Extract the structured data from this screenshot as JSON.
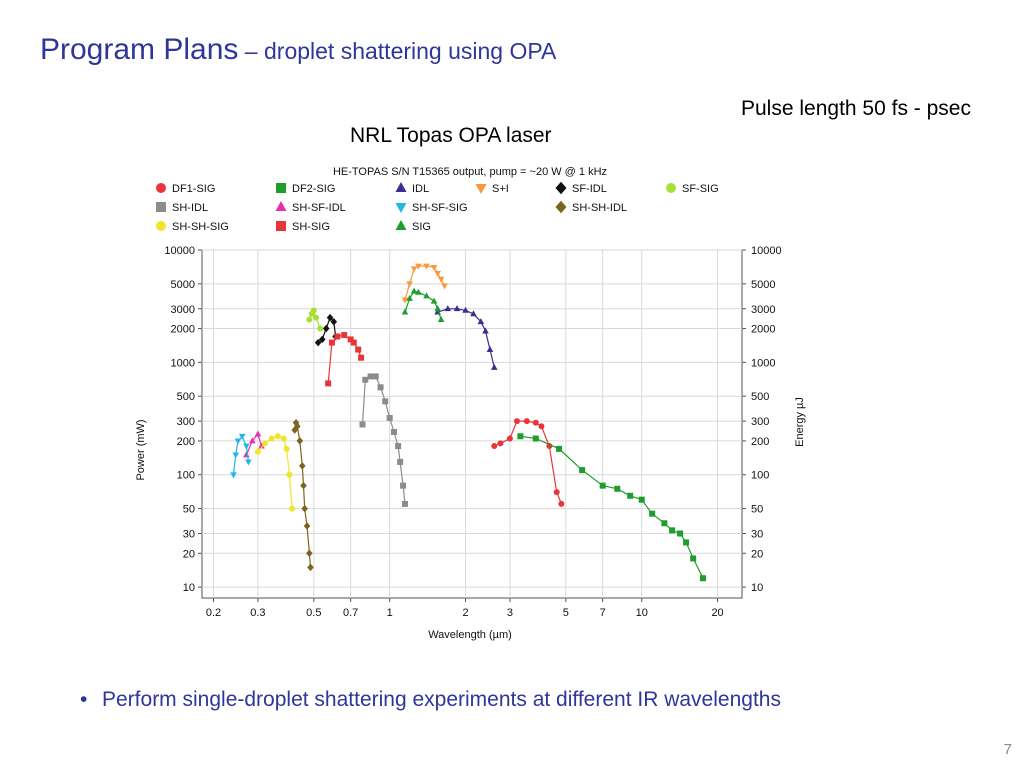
{
  "slide": {
    "title_main": "Program Plans",
    "title_sub": " – droplet shattering using OPA",
    "pulse_label": "Pulse length 50 fs - psec",
    "laser_label": "NRL Topas OPA laser",
    "bullet": "Perform single-droplet shattering experiments at different IR wavelengths",
    "page_number": "7"
  },
  "chart_data": {
    "type": "line",
    "title": "HE-TOPAS S/N T15365 output, pump = ~20 W @ 1 kHz",
    "xlabel": "Wavelength (µm)",
    "ylabel": "Power (mW)",
    "ylabel_right": "Energy µJ",
    "xscale": "log",
    "yscale": "log",
    "xlim": [
      0.18,
      25
    ],
    "ylim": [
      8,
      10000
    ],
    "grid": true,
    "legend_position": "top",
    "x_ticks": [
      0.2,
      0.3,
      0.5,
      0.7,
      1,
      2,
      3,
      5,
      7,
      10,
      20
    ],
    "x_tick_labels": [
      "0.2",
      "0.3",
      "0.5",
      "0.7",
      "1",
      "2",
      "3",
      "5",
      "7",
      "10",
      "20"
    ],
    "y_ticks": [
      10,
      20,
      30,
      50,
      100,
      200,
      300,
      500,
      1000,
      2000,
      3000,
      5000,
      10000
    ],
    "y_tick_labels": [
      "10",
      "20",
      "30",
      "50",
      "100",
      "200",
      "300",
      "500",
      "1000",
      "2000",
      "3000",
      "5000",
      "10000"
    ],
    "series": [
      {
        "name": "DF1-SIG",
        "color": "#e8353a",
        "marker": "circle",
        "x": [
          2.6,
          2.75,
          3.0,
          3.2,
          3.5,
          3.8,
          4.0,
          4.3,
          4.6,
          4.8
        ],
        "y": [
          180,
          190,
          210,
          300,
          300,
          290,
          270,
          180,
          70,
          55
        ]
      },
      {
        "name": "DF2-SIG",
        "color": "#1f9e2e",
        "marker": "square",
        "x": [
          3.3,
          3.8,
          4.7,
          5.8,
          7.0,
          8.0,
          9.0,
          10.0,
          11.0,
          12.3,
          13.2,
          14.2,
          15.0,
          16.0,
          17.5
        ],
        "y": [
          220,
          210,
          170,
          110,
          80,
          75,
          65,
          60,
          45,
          37,
          32,
          30,
          25,
          18,
          12
        ]
      },
      {
        "name": "IDL",
        "color": "#38308f",
        "marker": "triangle-up",
        "x": [
          1.55,
          1.7,
          1.85,
          2.0,
          2.15,
          2.3,
          2.4,
          2.5,
          2.6
        ],
        "y": [
          2800,
          3000,
          3000,
          2900,
          2700,
          2300,
          1900,
          1300,
          900
        ]
      },
      {
        "name": "S+I",
        "color": "#f7993c",
        "marker": "triangle-down",
        "x": [
          1.15,
          1.2,
          1.25,
          1.3,
          1.4,
          1.5,
          1.55,
          1.6,
          1.65
        ],
        "y": [
          3600,
          5000,
          6800,
          7200,
          7200,
          7000,
          6200,
          5500,
          4800
        ]
      },
      {
        "name": "SF-IDL",
        "color": "#111111",
        "marker": "diamond",
        "x": [
          0.52,
          0.54,
          0.56,
          0.58,
          0.6,
          0.61
        ],
        "y": [
          1500,
          1600,
          2000,
          2500,
          2300,
          1700
        ]
      },
      {
        "name": "SF-SIG",
        "color": "#a8e03a",
        "marker": "circle",
        "x": [
          0.48,
          0.49,
          0.5,
          0.51,
          0.53
        ],
        "y": [
          2400,
          2700,
          2900,
          2500,
          2000
        ]
      },
      {
        "name": "SH-IDL",
        "color": "#8c8c8c",
        "marker": "square",
        "x": [
          0.78,
          0.8,
          0.84,
          0.88,
          0.92,
          0.96,
          1.0,
          1.04,
          1.08,
          1.1,
          1.13,
          1.15
        ],
        "y": [
          280,
          700,
          750,
          750,
          600,
          450,
          320,
          240,
          180,
          130,
          80,
          55
        ]
      },
      {
        "name": "SH-SF-IDL",
        "color": "#e52fb0",
        "marker": "triangle-up",
        "x": [
          0.27,
          0.285,
          0.3,
          0.31
        ],
        "y": [
          150,
          200,
          230,
          180
        ]
      },
      {
        "name": "SH-SF-SIG",
        "color": "#22b6ea",
        "marker": "triangle-down",
        "x": [
          0.24,
          0.245,
          0.25,
          0.26,
          0.27,
          0.275
        ],
        "y": [
          100,
          150,
          200,
          220,
          180,
          130
        ]
      },
      {
        "name": "SH-SH-IDL",
        "color": "#7a6420",
        "marker": "diamond",
        "x": [
          0.42,
          0.425,
          0.43,
          0.44,
          0.45,
          0.455,
          0.46,
          0.47,
          0.48,
          0.485
        ],
        "y": [
          250,
          290,
          270,
          200,
          120,
          80,
          50,
          35,
          20,
          15
        ]
      },
      {
        "name": "SH-SH-SIG",
        "color": "#f0e52a",
        "marker": "circle",
        "x": [
          0.3,
          0.32,
          0.34,
          0.36,
          0.38,
          0.39,
          0.4,
          0.41
        ],
        "y": [
          160,
          190,
          210,
          220,
          210,
          170,
          100,
          50
        ]
      },
      {
        "name": "SH-SIG",
        "color": "#e8353a",
        "marker": "square",
        "x": [
          0.57,
          0.59,
          0.62,
          0.66,
          0.7,
          0.72,
          0.75,
          0.77
        ],
        "y": [
          650,
          1500,
          1700,
          1750,
          1600,
          1500,
          1300,
          1100
        ]
      },
      {
        "name": "SIG",
        "color": "#1f9e2e",
        "marker": "triangle-up",
        "x": [
          1.15,
          1.2,
          1.25,
          1.3,
          1.4,
          1.5,
          1.55,
          1.6
        ],
        "y": [
          2800,
          3700,
          4300,
          4200,
          3900,
          3500,
          3000,
          2400
        ]
      }
    ]
  }
}
